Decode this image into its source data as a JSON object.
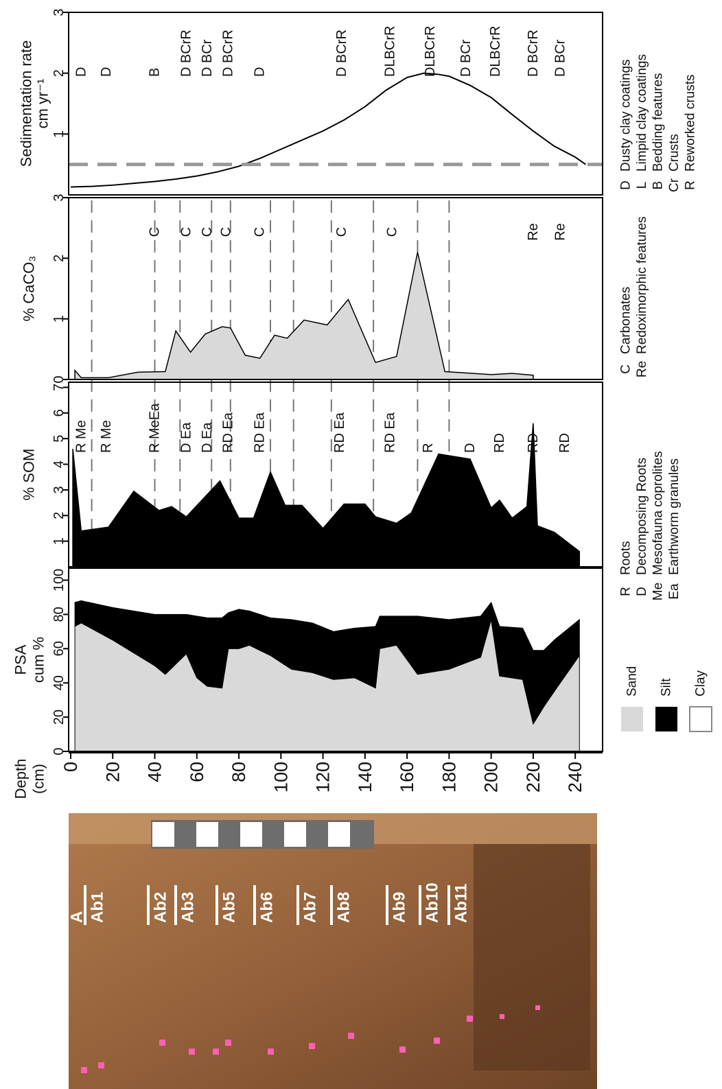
{
  "x_axis": {
    "label": "Depth",
    "unit": "(cm)",
    "xlim": [
      0,
      253
    ],
    "xticks": [
      0,
      20,
      40,
      60,
      80,
      100,
      120,
      140,
      160,
      180,
      200,
      220,
      240
    ]
  },
  "horizon_depths": [
    10,
    40,
    52,
    67,
    76,
    95,
    106,
    124,
    144,
    165,
    180
  ],
  "chart_data": [
    {
      "type": "line",
      "title": "Sedimentation rate",
      "subtitle": "cm yr⁻¹",
      "color": "#000000",
      "x": [
        0,
        10,
        20,
        30,
        40,
        50,
        60,
        70,
        80,
        90,
        100,
        110,
        120,
        130,
        140,
        150,
        160,
        168,
        175,
        180,
        190,
        200,
        210,
        220,
        230,
        240,
        245
      ],
      "values": [
        0.13,
        0.14,
        0.16,
        0.19,
        0.22,
        0.26,
        0.31,
        0.38,
        0.47,
        0.6,
        0.75,
        0.9,
        1.05,
        1.23,
        1.45,
        1.72,
        1.93,
        2.0,
        1.98,
        1.95,
        1.8,
        1.6,
        1.32,
        1.05,
        0.8,
        0.62,
        0.5
      ],
      "ylim": [
        0,
        3
      ],
      "yticks": [
        1,
        2,
        3
      ],
      "reference_line": 0.5,
      "reference_color": "#999999",
      "annotations": [
        {
          "depth": 5,
          "text": "D"
        },
        {
          "depth": 17,
          "text": "D"
        },
        {
          "depth": 40,
          "text": "B"
        },
        {
          "depth": 55,
          "text": "D BCrR"
        },
        {
          "depth": 65,
          "text": "D BCr"
        },
        {
          "depth": 75,
          "text": "D BCrR"
        },
        {
          "depth": 90,
          "text": "D"
        },
        {
          "depth": 129,
          "text": "D BCrR"
        },
        {
          "depth": 152,
          "text": "DLBCrR"
        },
        {
          "depth": 171,
          "text": "DLBCrR"
        },
        {
          "depth": 188,
          "text": "D BCr"
        },
        {
          "depth": 202,
          "text": "DLBCrR"
        },
        {
          "depth": 220,
          "text": "D BCrR"
        },
        {
          "depth": 233,
          "text": "D BCr"
        }
      ]
    },
    {
      "type": "area",
      "title": "% CaCO₃",
      "color": "#d9d9d9",
      "x": [
        2,
        5,
        18,
        32,
        45,
        50,
        57,
        64,
        72,
        76,
        83,
        90,
        97,
        103,
        111,
        122,
        132,
        145,
        155,
        165,
        178,
        200,
        210,
        220
      ],
      "values": [
        0.15,
        0.03,
        0.03,
        0.12,
        0.13,
        0.8,
        0.45,
        0.75,
        0.87,
        0.85,
        0.4,
        0.35,
        0.73,
        0.68,
        0.98,
        0.9,
        1.32,
        0.28,
        0.38,
        2.1,
        0.13,
        0.08,
        0.1,
        0.07
      ],
      "ylim": [
        0,
        3
      ],
      "yticks": [
        0,
        1,
        2,
        3
      ],
      "annotations": [
        {
          "depth": 40,
          "text": "C"
        },
        {
          "depth": 55,
          "text": "C"
        },
        {
          "depth": 65,
          "text": "C"
        },
        {
          "depth": 74,
          "text": "C"
        },
        {
          "depth": 90,
          "text": "C"
        },
        {
          "depth": 129,
          "text": "C"
        },
        {
          "depth": 153,
          "text": "C"
        },
        {
          "depth": 220,
          "text": "Re"
        },
        {
          "depth": 233,
          "text": "Re"
        }
      ]
    },
    {
      "type": "area",
      "title": "% SOM",
      "color": "#000000",
      "x": [
        1,
        5,
        18,
        30,
        42,
        48,
        55,
        71,
        80,
        87,
        95,
        102,
        110,
        120,
        130,
        140,
        145,
        155,
        162,
        175,
        190,
        200,
        204,
        210,
        217,
        220,
        222,
        230,
        242
      ],
      "values": [
        4.6,
        1.4,
        1.55,
        2.95,
        2.2,
        2.35,
        1.95,
        3.35,
        1.9,
        1.9,
        3.7,
        2.4,
        2.4,
        1.5,
        2.45,
        2.45,
        1.95,
        1.7,
        2.1,
        4.4,
        4.2,
        2.3,
        2.6,
        1.9,
        2.35,
        5.6,
        1.6,
        1.35,
        0.6
      ],
      "ylim": [
        0,
        7.2
      ],
      "yticks": [
        1,
        2,
        3,
        4,
        5,
        6,
        7
      ],
      "annotations": [
        {
          "depth": 5,
          "text": "R Me"
        },
        {
          "depth": 17,
          "text": "R Me"
        },
        {
          "depth": 40,
          "text": "R MeEa"
        },
        {
          "depth": 55,
          "text": "D Ea"
        },
        {
          "depth": 65,
          "text": "D Ea"
        },
        {
          "depth": 75,
          "text": "RD Ea"
        },
        {
          "depth": 90,
          "text": "RD Ea"
        },
        {
          "depth": 128,
          "text": "RD Ea"
        },
        {
          "depth": 152,
          "text": "RD Ea"
        },
        {
          "depth": 170,
          "text": "R"
        },
        {
          "depth": 190,
          "text": "D"
        },
        {
          "depth": 204,
          "text": "RD"
        },
        {
          "depth": 220,
          "text": "RD"
        },
        {
          "depth": 235,
          "text": "RD"
        }
      ]
    },
    {
      "type": "stacked_area",
      "title": "PSA",
      "subtitle": "cum %",
      "x": [
        2,
        5,
        20,
        40,
        45,
        55,
        60,
        65,
        72,
        75,
        80,
        85,
        95,
        105,
        115,
        125,
        135,
        145,
        147,
        155,
        165,
        180,
        195,
        200,
        204,
        215,
        220,
        225,
        230,
        242
      ],
      "series": [
        {
          "name": "Sand",
          "color": "#d9d9d9",
          "values": [
            73,
            75,
            65,
            50,
            45,
            57,
            43,
            38,
            37,
            60,
            60,
            62,
            56,
            48,
            46,
            42,
            43,
            37,
            60,
            62,
            45,
            48,
            55,
            77,
            44,
            42,
            16,
            26,
            35,
            56
          ]
        },
        {
          "name": "Silt",
          "color": "#000000",
          "values": [
            14,
            13,
            19,
            30,
            35,
            23,
            36,
            40,
            41,
            21,
            23,
            20,
            22,
            29,
            29,
            28,
            29,
            36,
            19,
            17,
            34,
            29,
            24,
            10,
            29,
            30,
            43,
            33,
            30,
            21
          ]
        }
      ],
      "remainder": {
        "name": "Clay",
        "color": "#ffffff"
      },
      "ylim": [
        0,
        107
      ],
      "yticks": [
        0,
        20,
        40,
        60,
        80,
        100
      ]
    }
  ],
  "legends": {
    "sedimentation": [
      {
        "code": "D",
        "label": "Dusty clay coatings"
      },
      {
        "code": "L",
        "label": "Limpid clay coatings"
      },
      {
        "code": "B",
        "label": "Bedding features"
      },
      {
        "code": "Cr",
        "label": "Crusts"
      },
      {
        "code": "R",
        "label": "Reworked crusts"
      }
    ],
    "carbonate": [
      {
        "code": "C",
        "label": "Carbonates"
      },
      {
        "code": "Re",
        "label": "Redoximorphic features"
      }
    ],
    "som": [
      {
        "code": "R",
        "label": "Roots"
      },
      {
        "code": "D",
        "label": "Decomposing Roots"
      },
      {
        "code": "Me",
        "label": "Mesofauna coprolites"
      },
      {
        "code": "Ea",
        "label": "Earthworm granules"
      }
    ]
  },
  "photo": {
    "horizons": [
      "A",
      "Ab1",
      "Ab2",
      "Ab3",
      "Ab5",
      "Ab6",
      "Ab7",
      "Ab8",
      "Ab9",
      "Ab10",
      "Ab11"
    ]
  }
}
